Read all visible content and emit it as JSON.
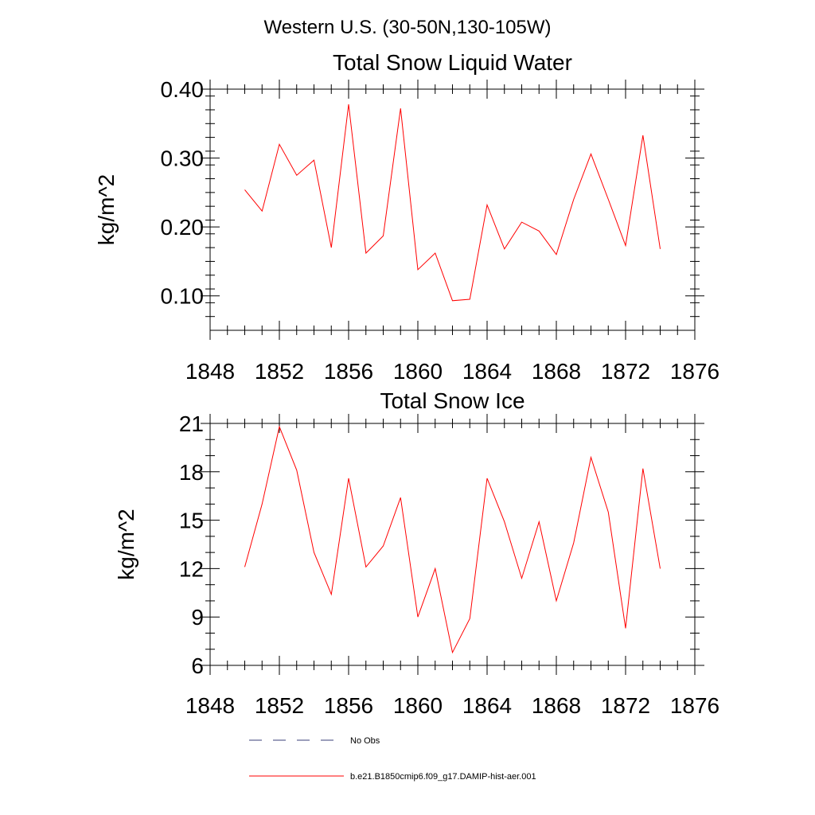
{
  "header": {
    "region_title": "Western U.S. (30-50N,130-105W)"
  },
  "legend": {
    "items": [
      {
        "label": "No Obs",
        "color": "#3a3f7a",
        "dash": true
      },
      {
        "label": "b.e21.B1850cmip6.f09_g17.DAMIP-hist-aer.001",
        "color": "#ff0000",
        "dash": false
      }
    ]
  },
  "chart_data": [
    {
      "type": "line",
      "title": "Total Snow Liquid Water",
      "ylabel": "kg/m^2",
      "xlim": [
        1848,
        1876
      ],
      "ylim": [
        0.05,
        0.4
      ],
      "xticks": [
        1848,
        1852,
        1856,
        1860,
        1864,
        1868,
        1872,
        1876
      ],
      "xtick_labels": [
        "1848",
        "1852",
        "1856",
        "1860",
        "1864",
        "1868",
        "1872",
        "1876"
      ],
      "yticks": [
        0.1,
        0.2,
        0.3,
        0.4
      ],
      "ytick_labels": [
        "0.10",
        "0.20",
        "0.30",
        "0.40"
      ],
      "grid": false,
      "series": [
        {
          "color": "#ff0000",
          "x": [
            1850,
            1851,
            1852,
            1853,
            1854,
            1855,
            1856,
            1857,
            1858,
            1859,
            1860,
            1861,
            1862,
            1863,
            1864,
            1865,
            1866,
            1867,
            1868,
            1869,
            1870,
            1871,
            1872,
            1873,
            1874
          ],
          "y": [
            0.254,
            0.223,
            0.32,
            0.275,
            0.297,
            0.17,
            0.378,
            0.162,
            0.187,
            0.372,
            0.138,
            0.162,
            0.093,
            0.095,
            0.232,
            0.168,
            0.207,
            0.194,
            0.16,
            0.24,
            0.306,
            0.24,
            0.173,
            0.333,
            0.168
          ]
        }
      ]
    },
    {
      "type": "line",
      "title": "Total Snow Ice",
      "ylabel": "kg/m^2",
      "xlim": [
        1848,
        1876
      ],
      "ylim": [
        6,
        21
      ],
      "xticks": [
        1848,
        1852,
        1856,
        1860,
        1864,
        1868,
        1872,
        1876
      ],
      "xtick_labels": [
        "1848",
        "1852",
        "1856",
        "1860",
        "1864",
        "1868",
        "1872",
        "1876"
      ],
      "yticks": [
        6,
        9,
        12,
        15,
        18,
        21
      ],
      "ytick_labels": [
        "6",
        "9",
        "12",
        "15",
        "18",
        "21"
      ],
      "grid": false,
      "series": [
        {
          "color": "#ff0000",
          "x": [
            1850,
            1851,
            1852,
            1853,
            1854,
            1855,
            1856,
            1857,
            1858,
            1859,
            1860,
            1861,
            1862,
            1863,
            1864,
            1865,
            1866,
            1867,
            1868,
            1869,
            1870,
            1871,
            1872,
            1873,
            1874
          ],
          "y": [
            12.1,
            16.0,
            20.8,
            18.1,
            13.0,
            10.4,
            17.6,
            12.1,
            13.4,
            16.4,
            9.0,
            12.0,
            6.8,
            8.9,
            17.6,
            14.9,
            11.4,
            14.9,
            10.0,
            13.6,
            18.9,
            15.5,
            8.3,
            18.2,
            12.0
          ]
        }
      ]
    }
  ]
}
